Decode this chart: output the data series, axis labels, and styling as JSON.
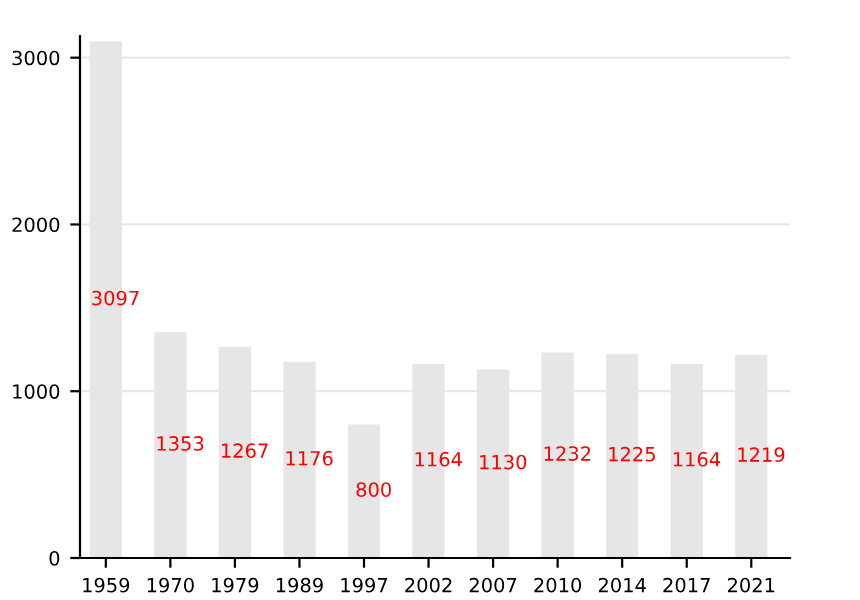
{
  "chart_data": {
    "type": "bar",
    "categories": [
      "1959",
      "1970",
      "1979",
      "1989",
      "1997",
      "2002",
      "2007",
      "2010",
      "2014",
      "2017",
      "2021"
    ],
    "values": [
      3097,
      1353,
      1267,
      1176,
      800,
      1164,
      1130,
      1232,
      1225,
      1164,
      1219
    ],
    "color": "#e6e6e6",
    "ylim": [
      0,
      3130
    ],
    "yticks": [
      0,
      1000,
      2000,
      3000
    ],
    "grid": "y",
    "data_labels": true,
    "legend": false
  }
}
